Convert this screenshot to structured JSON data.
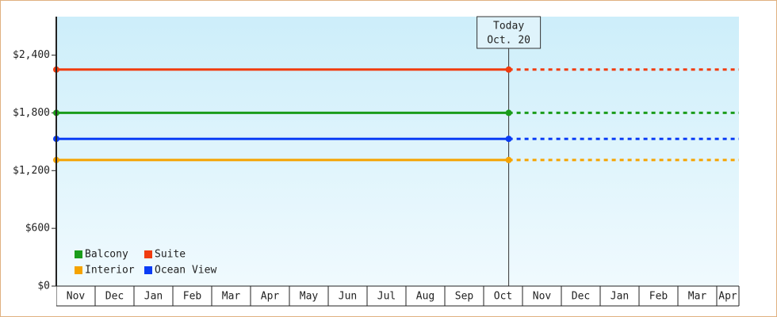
{
  "chart_data": {
    "type": "line",
    "categories": [
      "Nov",
      "Dec",
      "Jan",
      "Feb",
      "Mar",
      "Apr",
      "May",
      "Jun",
      "Jul",
      "Aug",
      "Sep",
      "Oct",
      "Nov",
      "Dec",
      "Jan",
      "Feb",
      "Mar",
      "Apr"
    ],
    "series": [
      {
        "name": "Balcony",
        "color": "#1a9c1a",
        "value": 1800
      },
      {
        "name": "Suite",
        "color": "#f03c0f",
        "value": 2250
      },
      {
        "name": "Interior",
        "color": "#f5a300",
        "value": 1310
      },
      {
        "name": "Ocean View",
        "color": "#0a3cf5",
        "value": 1530
      }
    ],
    "today_label": "Today",
    "today_date": "Oct. 20",
    "ylim": [
      0,
      2800
    ],
    "yticks": [
      {
        "value": 0,
        "label": "$0"
      },
      {
        "value": 600,
        "label": "$600"
      },
      {
        "value": 1200,
        "label": "$1,200"
      },
      {
        "value": 1800,
        "label": "$1,800"
      },
      {
        "value": 2400,
        "label": "$2,400"
      }
    ]
  }
}
